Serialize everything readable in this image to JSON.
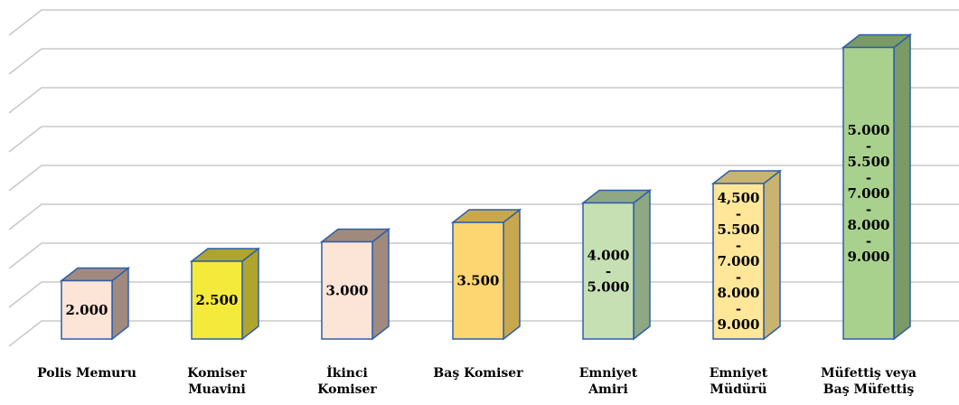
{
  "chart_data": {
    "type": "bar",
    "style": "3d-column",
    "grid": true,
    "legend": "none",
    "ylim": [
      0,
      9
    ],
    "categories": [
      [
        "Polis Memuru"
      ],
      [
        "Komiser",
        "Muavini"
      ],
      [
        "İkinci",
        "Komiser"
      ],
      [
        "Baş Komiser"
      ],
      [
        "Emniyet",
        "Amiri"
      ],
      [
        "Emniyet",
        "Müdürü"
      ],
      [
        "Müfettiş veya",
        "Baş Müfettiş"
      ]
    ],
    "values": [
      1.5,
      2.0,
      2.5,
      3.0,
      3.5,
      4.0,
      7.5
    ],
    "labels": [
      [
        "2.000"
      ],
      [
        "2.500"
      ],
      [
        "3.000"
      ],
      [
        "3.500"
      ],
      [
        "4.000",
        "-",
        "5.000"
      ],
      [
        "4,500",
        "-",
        "5.500",
        "-",
        "7.000",
        "-",
        "8.000",
        "-",
        "9.000"
      ],
      [
        "5.000",
        "-",
        "5.500",
        "-",
        "7.000",
        "-",
        "8.000",
        "-",
        "9.000"
      ]
    ],
    "colors": [
      {
        "front": "#fce4d6",
        "side": "#a08a7e",
        "top": "#a08a7e"
      },
      {
        "front": "#f4ea3c",
        "side": "#b0a52c",
        "top": "#b0a52c"
      },
      {
        "front": "#fce4d6",
        "side": "#a08a7e",
        "top": "#a08a7e"
      },
      {
        "front": "#fdd571",
        "side": "#c9a84d",
        "top": "#c9a84d"
      },
      {
        "front": "#c6e0b4",
        "side": "#8ea884",
        "top": "#8ea884"
      },
      {
        "front": "#ffe699",
        "side": "#c9b370",
        "top": "#c9b370"
      },
      {
        "front": "#a9d18e",
        "side": "#7a9a66",
        "top": "#7a9a66"
      }
    ],
    "outline": "#2e5fa8"
  }
}
